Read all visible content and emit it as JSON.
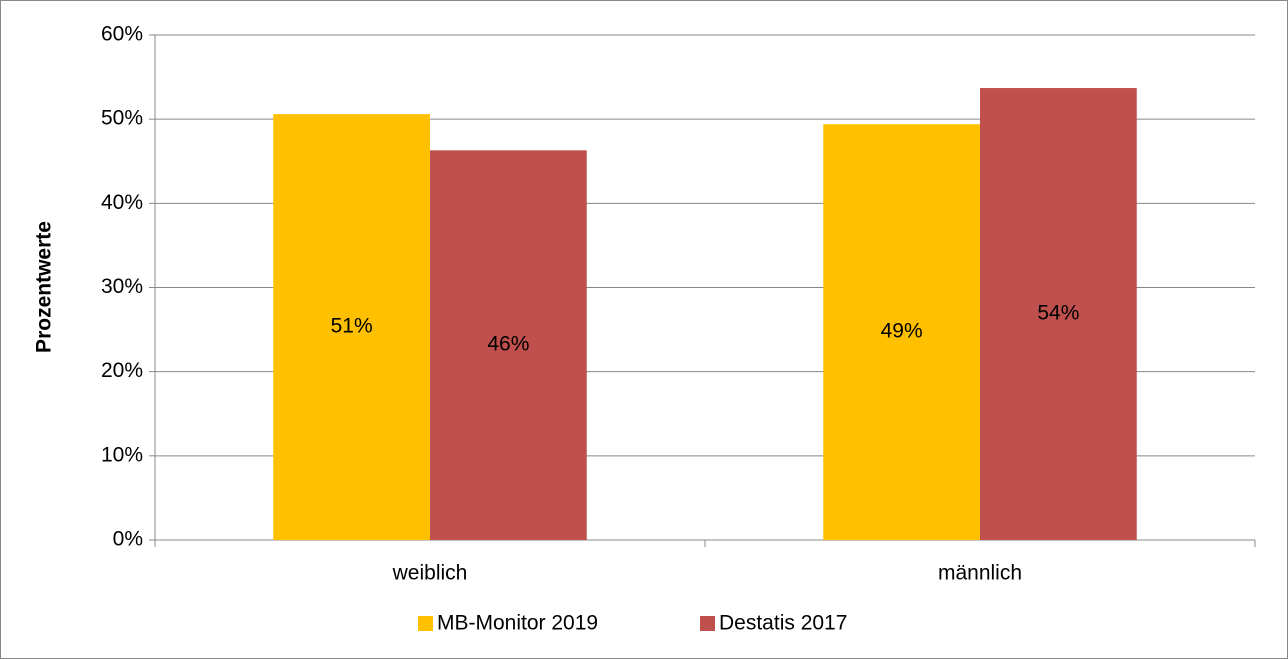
{
  "chart_data": {
    "type": "bar",
    "y_label": "Prozentwerte",
    "categories": [
      "weiblich",
      "männlich"
    ],
    "series": [
      {
        "name": "MB-Monitor 2019",
        "color": "#FFC000",
        "values": [
          50.6,
          49.4
        ],
        "value_labels": [
          "51%",
          "49%"
        ]
      },
      {
        "name": "Destatis 2017",
        "color": "#C0504D",
        "values": [
          46.3,
          53.7
        ],
        "value_labels": [
          "46%",
          "54%"
        ]
      }
    ],
    "ylim": [
      0,
      60
    ],
    "yticks": [
      {
        "value": 0,
        "label": "0%"
      },
      {
        "value": 10,
        "label": "10%"
      },
      {
        "value": 20,
        "label": "20%"
      },
      {
        "value": 30,
        "label": "30%"
      },
      {
        "value": 40,
        "label": "40%"
      },
      {
        "value": 50,
        "label": "50%"
      },
      {
        "value": 60,
        "label": "60%"
      }
    ],
    "grid": true,
    "legend": "bottom"
  }
}
